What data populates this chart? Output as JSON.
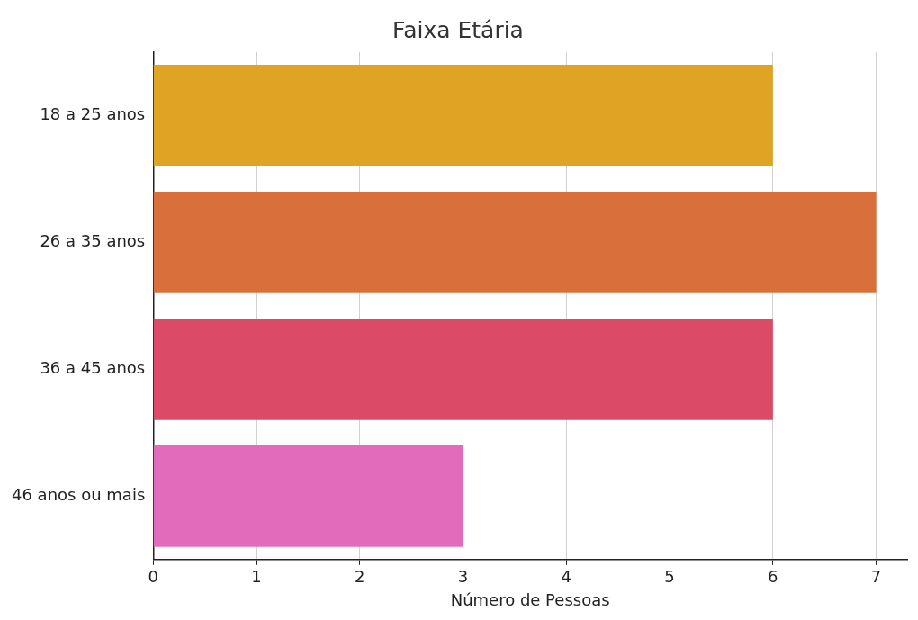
{
  "chart_data": {
    "type": "bar",
    "orientation": "horizontal",
    "title": "Faixa Etária",
    "xlabel": "Número de Pessoas",
    "categories": [
      "18 a 25 anos",
      "26 a 35 anos",
      "36 a 45 anos",
      "46 anos ou mais"
    ],
    "values": [
      6,
      7,
      6,
      3
    ],
    "colors": [
      "#dfa423",
      "#d9703b",
      "#db4a67",
      "#e36bbc"
    ],
    "xlim": [
      0,
      7.3
    ],
    "xticks": [
      0,
      1,
      2,
      3,
      4,
      5,
      6,
      7
    ],
    "grid": "x",
    "legend": false
  }
}
